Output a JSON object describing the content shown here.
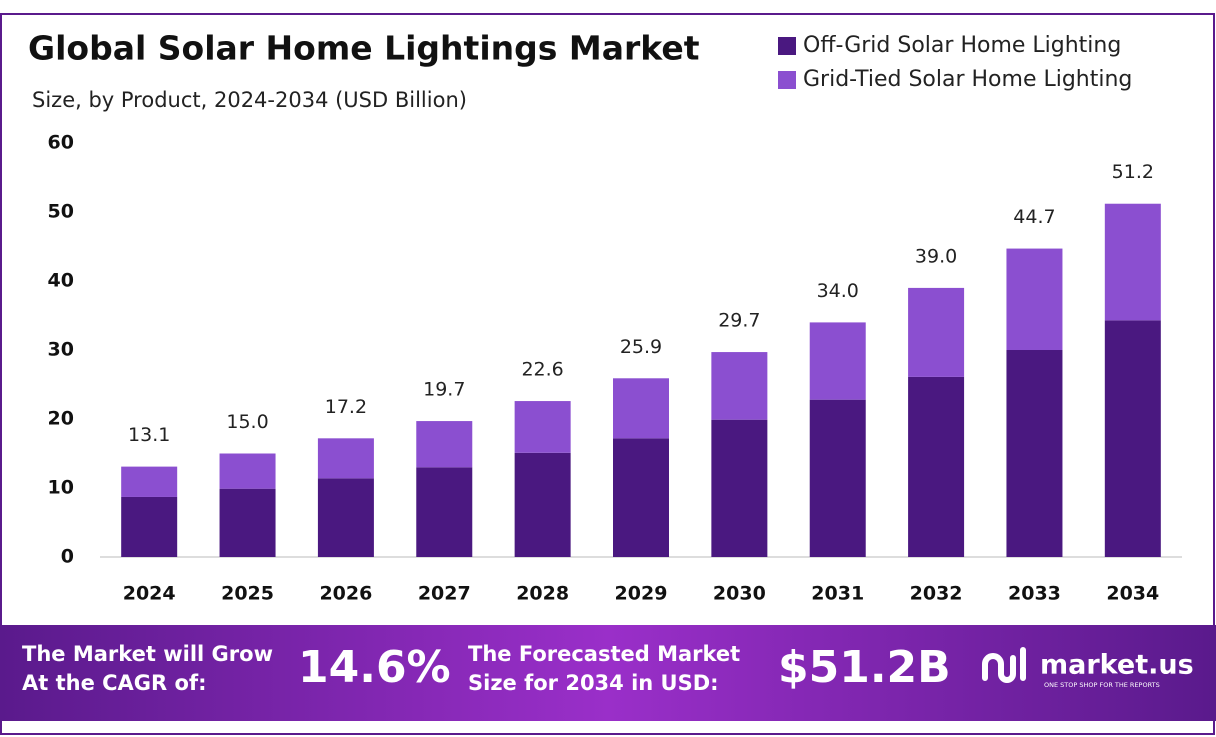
{
  "chart_data": {
    "type": "stacked-bar",
    "title": "Global Solar Home Lightings Market",
    "subtitle": "Size, by Product, 2024-2034 (USD Billion)",
    "categories": [
      "2024",
      "2025",
      "2026",
      "2027",
      "2028",
      "2029",
      "2030",
      "2031",
      "2032",
      "2033",
      "2034"
    ],
    "series": [
      {
        "name": "Off-Grid Solar Home Lighting",
        "color": "#4a1880",
        "values": [
          8.7,
          9.9,
          11.4,
          13.0,
          15.1,
          17.2,
          19.9,
          22.8,
          26.1,
          30.0,
          34.3
        ]
      },
      {
        "name": "Grid-Tied Solar Home Lighting",
        "color": "#8b4fd0",
        "values": [
          4.4,
          5.1,
          5.8,
          6.7,
          7.5,
          8.7,
          9.8,
          11.2,
          12.9,
          14.7,
          16.9
        ]
      }
    ],
    "totals": [
      13.1,
      15.0,
      17.2,
      19.7,
      22.6,
      25.9,
      29.7,
      34.0,
      39.0,
      44.7,
      51.2
    ],
    "total_labels": [
      "13.1",
      "15.0",
      "17.2",
      "19.7",
      "22.6",
      "25.9",
      "29.7",
      "34.0",
      "39.0",
      "44.7",
      "51.2"
    ],
    "ylim": [
      0,
      60
    ],
    "yticks": [
      0,
      10,
      20,
      30,
      40,
      50,
      60
    ],
    "grid": false,
    "legend": "top-right"
  },
  "footer": {
    "cagr_text": [
      "The Market will Grow",
      "At the CAGR of:"
    ],
    "cagr_value": "14.6%",
    "forecast_text": [
      "The Forecasted Market",
      "Size for 2034 in USD:"
    ],
    "forecast_value": "$51.2B",
    "brand": "market.us",
    "tagline": "ONE STOP SHOP FOR THE REPORTS"
  }
}
